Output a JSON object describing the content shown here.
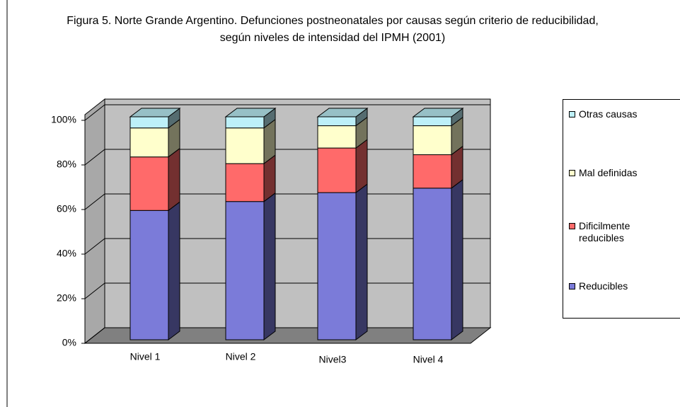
{
  "chart_data": {
    "type": "bar3d_stacked",
    "title": "Figura 5. Norte Grande Argentino. Defunciones postneonatales por causas según criterio de reducibilidad, según niveles de intensidad del IPMH  (2001)",
    "categories": [
      "Nivel 1",
      "Nivel 2",
      "Nivel3",
      "Nivel 4"
    ],
    "series": [
      {
        "name": "Reducibles",
        "color": "#7b7bd9",
        "values": [
          58,
          62,
          66,
          68
        ]
      },
      {
        "name": "Dificilmente reducibles",
        "color": "#ff6a6a",
        "values": [
          24,
          17,
          20,
          15
        ]
      },
      {
        "name": "Mal definidas",
        "color": "#ffffcc",
        "values": [
          13,
          16,
          10,
          13
        ]
      },
      {
        "name": "Otras causas",
        "color": "#bdf0f8",
        "values": [
          5,
          5,
          4,
          4
        ]
      }
    ],
    "ylim": [
      0,
      100
    ],
    "yticks": [
      {
        "value": 0,
        "label": "0%"
      },
      {
        "value": 20,
        "label": "20%"
      },
      {
        "value": 40,
        "label": "40%"
      },
      {
        "value": 60,
        "label": "60%"
      },
      {
        "value": 80,
        "label": "80%"
      },
      {
        "value": 100,
        "label": "100%"
      }
    ],
    "grid": true
  }
}
